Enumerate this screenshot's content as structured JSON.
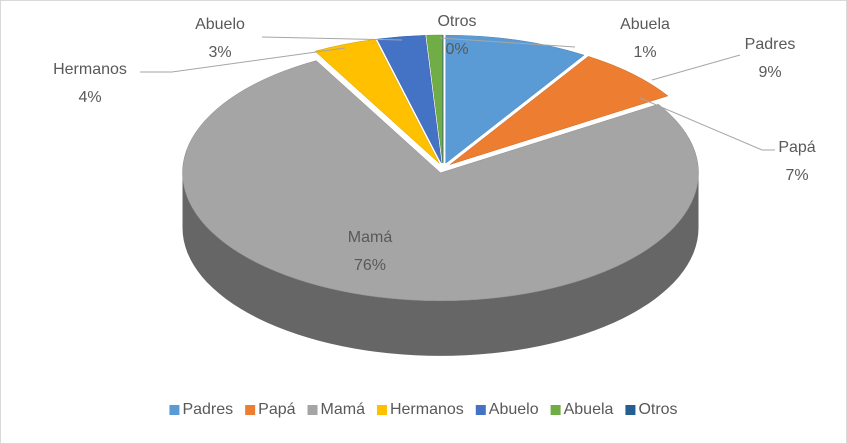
{
  "chart_data": {
    "type": "pie3d",
    "categories": [
      "Padres",
      "Papá",
      "Mamá",
      "Hermanos",
      "Abuelo",
      "Abuela",
      "Otros"
    ],
    "values": [
      9,
      7,
      76,
      4,
      3,
      1,
      0
    ],
    "value_labels": [
      "9%",
      "7%",
      "76%",
      "4%",
      "3%",
      "1%",
      "0%"
    ],
    "colors": [
      "#5b9bd5",
      "#ed7d31",
      "#a5a5a5",
      "#ffc000",
      "#4472c4",
      "#70ad47",
      "#255e91"
    ],
    "legend": "bottom"
  }
}
